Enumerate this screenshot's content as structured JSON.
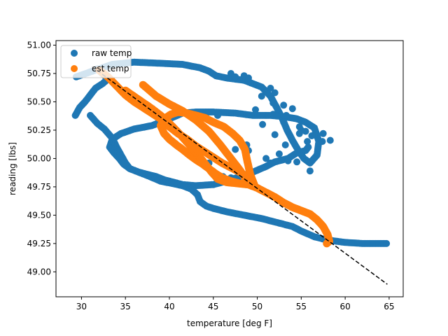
{
  "chart_data": {
    "type": "scatter",
    "xlabel": "temperature [deg F]",
    "ylabel": "reading [lbs]",
    "xlim": [
      27.1,
      66.6
    ],
    "ylim": [
      48.78,
      51.04
    ],
    "xticks": [
      30,
      35,
      40,
      45,
      50,
      55,
      60,
      65
    ],
    "yticks": [
      49.0,
      49.25,
      49.5,
      49.75,
      50.0,
      50.25,
      50.5,
      50.75,
      51.0
    ],
    "legend": {
      "placement": "top-left"
    },
    "series": [
      {
        "name": "raw temp",
        "color": "#1f77b4",
        "kind": "scatter",
        "path": [
          [
            29.4,
            50.72
          ],
          [
            31.6,
            50.78
          ],
          [
            33.5,
            50.83
          ],
          [
            36.0,
            50.85
          ],
          [
            39.0,
            50.84
          ],
          [
            41.5,
            50.83
          ],
          [
            43.5,
            50.8
          ],
          [
            44.5,
            50.77
          ],
          [
            45.3,
            50.73
          ],
          [
            46.5,
            50.71
          ],
          [
            48.5,
            50.69
          ],
          [
            50.5,
            50.63
          ],
          [
            51.5,
            50.55
          ],
          [
            52.2,
            50.45
          ],
          [
            52.8,
            50.36
          ],
          [
            53.4,
            50.25
          ],
          [
            54.0,
            50.16
          ],
          [
            54.6,
            50.08
          ],
          [
            55.3,
            50.0
          ],
          [
            56.0,
            49.96
          ],
          [
            56.8,
            50.03
          ],
          [
            57.0,
            50.15
          ],
          [
            56.5,
            50.27
          ],
          [
            55.5,
            50.32
          ],
          [
            54.5,
            50.35
          ],
          [
            53.0,
            50.37
          ],
          [
            51.5,
            50.38
          ],
          [
            49.5,
            50.38
          ],
          [
            47.5,
            50.4
          ],
          [
            45.0,
            50.41
          ],
          [
            43.0,
            50.41
          ],
          [
            41.5,
            50.4
          ],
          [
            40.0,
            50.35
          ],
          [
            38.0,
            50.29
          ],
          [
            36.0,
            50.26
          ],
          [
            34.5,
            50.22
          ],
          [
            33.5,
            50.17
          ],
          [
            33.2,
            50.1
          ],
          [
            33.7,
            50.05
          ],
          [
            34.3,
            50.0
          ],
          [
            34.8,
            49.95
          ],
          [
            35.5,
            49.91
          ],
          [
            36.5,
            49.88
          ],
          [
            37.5,
            49.86
          ],
          [
            38.5,
            49.84
          ],
          [
            39.5,
            49.81
          ],
          [
            40.5,
            49.79
          ],
          [
            41.5,
            49.77
          ],
          [
            43.0,
            49.76
          ],
          [
            45.0,
            49.77
          ],
          [
            46.5,
            49.8
          ],
          [
            48.0,
            49.84
          ],
          [
            49.5,
            49.88
          ],
          [
            51.0,
            49.93
          ],
          [
            52.0,
            49.97
          ],
          [
            53.5,
            50.0
          ],
          [
            54.5,
            50.05
          ],
          [
            55.5,
            50.07
          ],
          [
            55.8,
            50.1
          ]
        ],
        "path2": [
          [
            29.3,
            50.38
          ],
          [
            29.8,
            50.45
          ],
          [
            30.4,
            50.5
          ],
          [
            31.0,
            50.56
          ],
          [
            31.6,
            50.62
          ],
          [
            32.4,
            50.66
          ],
          [
            33.0,
            50.7
          ],
          [
            32.5,
            50.74
          ],
          [
            31.8,
            50.79
          ]
        ],
        "path3": [
          [
            31.0,
            50.38
          ],
          [
            31.8,
            50.31
          ],
          [
            32.6,
            50.26
          ],
          [
            33.5,
            50.18
          ],
          [
            34.0,
            50.1
          ],
          [
            34.5,
            50.03
          ],
          [
            35.0,
            49.96
          ],
          [
            35.5,
            49.91
          ],
          [
            36.5,
            49.88
          ],
          [
            37.8,
            49.84
          ],
          [
            39.0,
            49.8
          ],
          [
            40.3,
            49.78
          ],
          [
            41.5,
            49.76
          ],
          [
            42.5,
            49.73
          ],
          [
            43.2,
            49.68
          ],
          [
            43.5,
            49.62
          ],
          [
            44.2,
            49.58
          ],
          [
            45.0,
            49.56
          ],
          [
            46.5,
            49.53
          ],
          [
            48.5,
            49.5
          ],
          [
            50.5,
            49.47
          ],
          [
            52.5,
            49.43
          ],
          [
            54.0,
            49.4
          ],
          [
            55.0,
            49.36
          ],
          [
            56.5,
            49.31
          ],
          [
            58.0,
            49.28
          ],
          [
            60.0,
            49.26
          ],
          [
            62.0,
            49.25
          ],
          [
            64.0,
            49.25
          ],
          [
            64.7,
            49.25
          ]
        ],
        "outliers": [
          [
            47.0,
            50.75
          ],
          [
            47.5,
            50.72
          ],
          [
            48.5,
            50.73
          ],
          [
            49.0,
            50.71
          ],
          [
            51.5,
            50.62
          ],
          [
            52.0,
            50.58
          ],
          [
            50.5,
            50.55
          ],
          [
            51.8,
            50.49
          ],
          [
            53.0,
            50.47
          ],
          [
            53.3,
            50.38
          ],
          [
            54.0,
            50.44
          ],
          [
            52.0,
            50.21
          ],
          [
            53.2,
            50.12
          ],
          [
            52.5,
            50.04
          ],
          [
            51.0,
            50.0
          ],
          [
            53.5,
            49.98
          ],
          [
            54.5,
            49.97
          ],
          [
            56.0,
            49.89
          ],
          [
            57.4,
            50.15
          ],
          [
            58.3,
            50.16
          ],
          [
            57.5,
            50.22
          ],
          [
            56.2,
            50.2
          ],
          [
            55.0,
            50.25
          ],
          [
            51.5,
            49.96
          ],
          [
            47.5,
            50.08
          ],
          [
            49.0,
            50.07
          ],
          [
            45.5,
            50.38
          ],
          [
            54.8,
            50.28
          ],
          [
            53.0,
            50.32
          ],
          [
            49.8,
            50.43
          ],
          [
            51.8,
            50.39
          ],
          [
            50.6,
            50.3
          ],
          [
            54.8,
            50.22
          ],
          [
            55.5,
            50.24
          ],
          [
            47.2,
            49.95
          ],
          [
            48.8,
            50.12
          ],
          [
            46.1,
            49.84
          ],
          [
            47.0,
            49.83
          ],
          [
            44.5,
            49.96
          ],
          [
            55.7,
            50.15
          ]
        ]
      },
      {
        "name": "est temp",
        "color": "#ff7f0e",
        "kind": "scatter",
        "pathA": [
          [
            32.0,
            50.78
          ],
          [
            33.0,
            50.72
          ],
          [
            34.0,
            50.64
          ],
          [
            35.0,
            50.56
          ],
          [
            36.0,
            50.5
          ],
          [
            37.0,
            50.45
          ],
          [
            38.0,
            50.4
          ],
          [
            39.0,
            50.35
          ],
          [
            40.0,
            50.28
          ],
          [
            41.0,
            50.22
          ],
          [
            42.0,
            50.17
          ],
          [
            43.0,
            50.11
          ],
          [
            44.0,
            50.06
          ],
          [
            45.0,
            50.01
          ],
          [
            46.0,
            49.96
          ],
          [
            47.0,
            49.92
          ],
          [
            48.0,
            49.88
          ],
          [
            48.8,
            49.84
          ],
          [
            49.4,
            49.8
          ],
          [
            49.7,
            49.76
          ],
          [
            49.5,
            49.8
          ],
          [
            49.2,
            49.86
          ],
          [
            49.0,
            49.93
          ],
          [
            48.8,
            50.0
          ],
          [
            48.6,
            50.08
          ],
          [
            48.0,
            50.16
          ],
          [
            47.2,
            50.22
          ],
          [
            46.2,
            50.28
          ],
          [
            45.0,
            50.32
          ],
          [
            44.0,
            50.36
          ],
          [
            43.0,
            50.38
          ],
          [
            42.0,
            50.4
          ],
          [
            41.0,
            50.41
          ],
          [
            40.2,
            50.39
          ],
          [
            39.4,
            50.35
          ],
          [
            39.0,
            50.29
          ],
          [
            39.4,
            50.22
          ],
          [
            40.0,
            50.17
          ],
          [
            40.8,
            50.12
          ],
          [
            41.5,
            50.08
          ],
          [
            42.3,
            50.03
          ],
          [
            43.0,
            49.99
          ],
          [
            43.8,
            49.95
          ],
          [
            44.5,
            49.91
          ],
          [
            45.2,
            49.87
          ],
          [
            46.0,
            49.83
          ],
          [
            47.0,
            49.8
          ],
          [
            48.0,
            49.78
          ],
          [
            49.0,
            49.77
          ],
          [
            50.0,
            49.74
          ],
          [
            51.0,
            49.7
          ],
          [
            52.0,
            49.66
          ],
          [
            53.0,
            49.61
          ],
          [
            54.0,
            49.57
          ],
          [
            55.0,
            49.54
          ],
          [
            56.0,
            49.51
          ],
          [
            56.8,
            49.46
          ],
          [
            57.5,
            49.4
          ],
          [
            58.0,
            49.33
          ],
          [
            58.2,
            49.27
          ],
          [
            57.9,
            49.25
          ]
        ],
        "pathB": [
          [
            35.0,
            50.6
          ],
          [
            36.5,
            50.52
          ],
          [
            38.0,
            50.44
          ],
          [
            39.5,
            50.35
          ],
          [
            41.0,
            50.23
          ],
          [
            42.5,
            50.1
          ],
          [
            43.8,
            49.98
          ],
          [
            44.8,
            49.88
          ],
          [
            45.5,
            49.82
          ],
          [
            46.5,
            49.79
          ],
          [
            47.8,
            49.78
          ],
          [
            49.0,
            49.77
          ]
        ],
        "pathC": [
          [
            37.0,
            50.65
          ],
          [
            38.5,
            50.55
          ],
          [
            40.0,
            50.48
          ],
          [
            41.5,
            50.42
          ],
          [
            43.0,
            50.34
          ],
          [
            44.5,
            50.24
          ],
          [
            45.8,
            50.12
          ],
          [
            47.0,
            50.0
          ],
          [
            48.0,
            49.9
          ],
          [
            48.7,
            49.82
          ]
        ]
      },
      {
        "name": "",
        "color": "#000000",
        "kind": "dashed-line",
        "points": [
          [
            31.2,
            50.81
          ],
          [
            64.8,
            48.89
          ]
        ]
      }
    ]
  }
}
